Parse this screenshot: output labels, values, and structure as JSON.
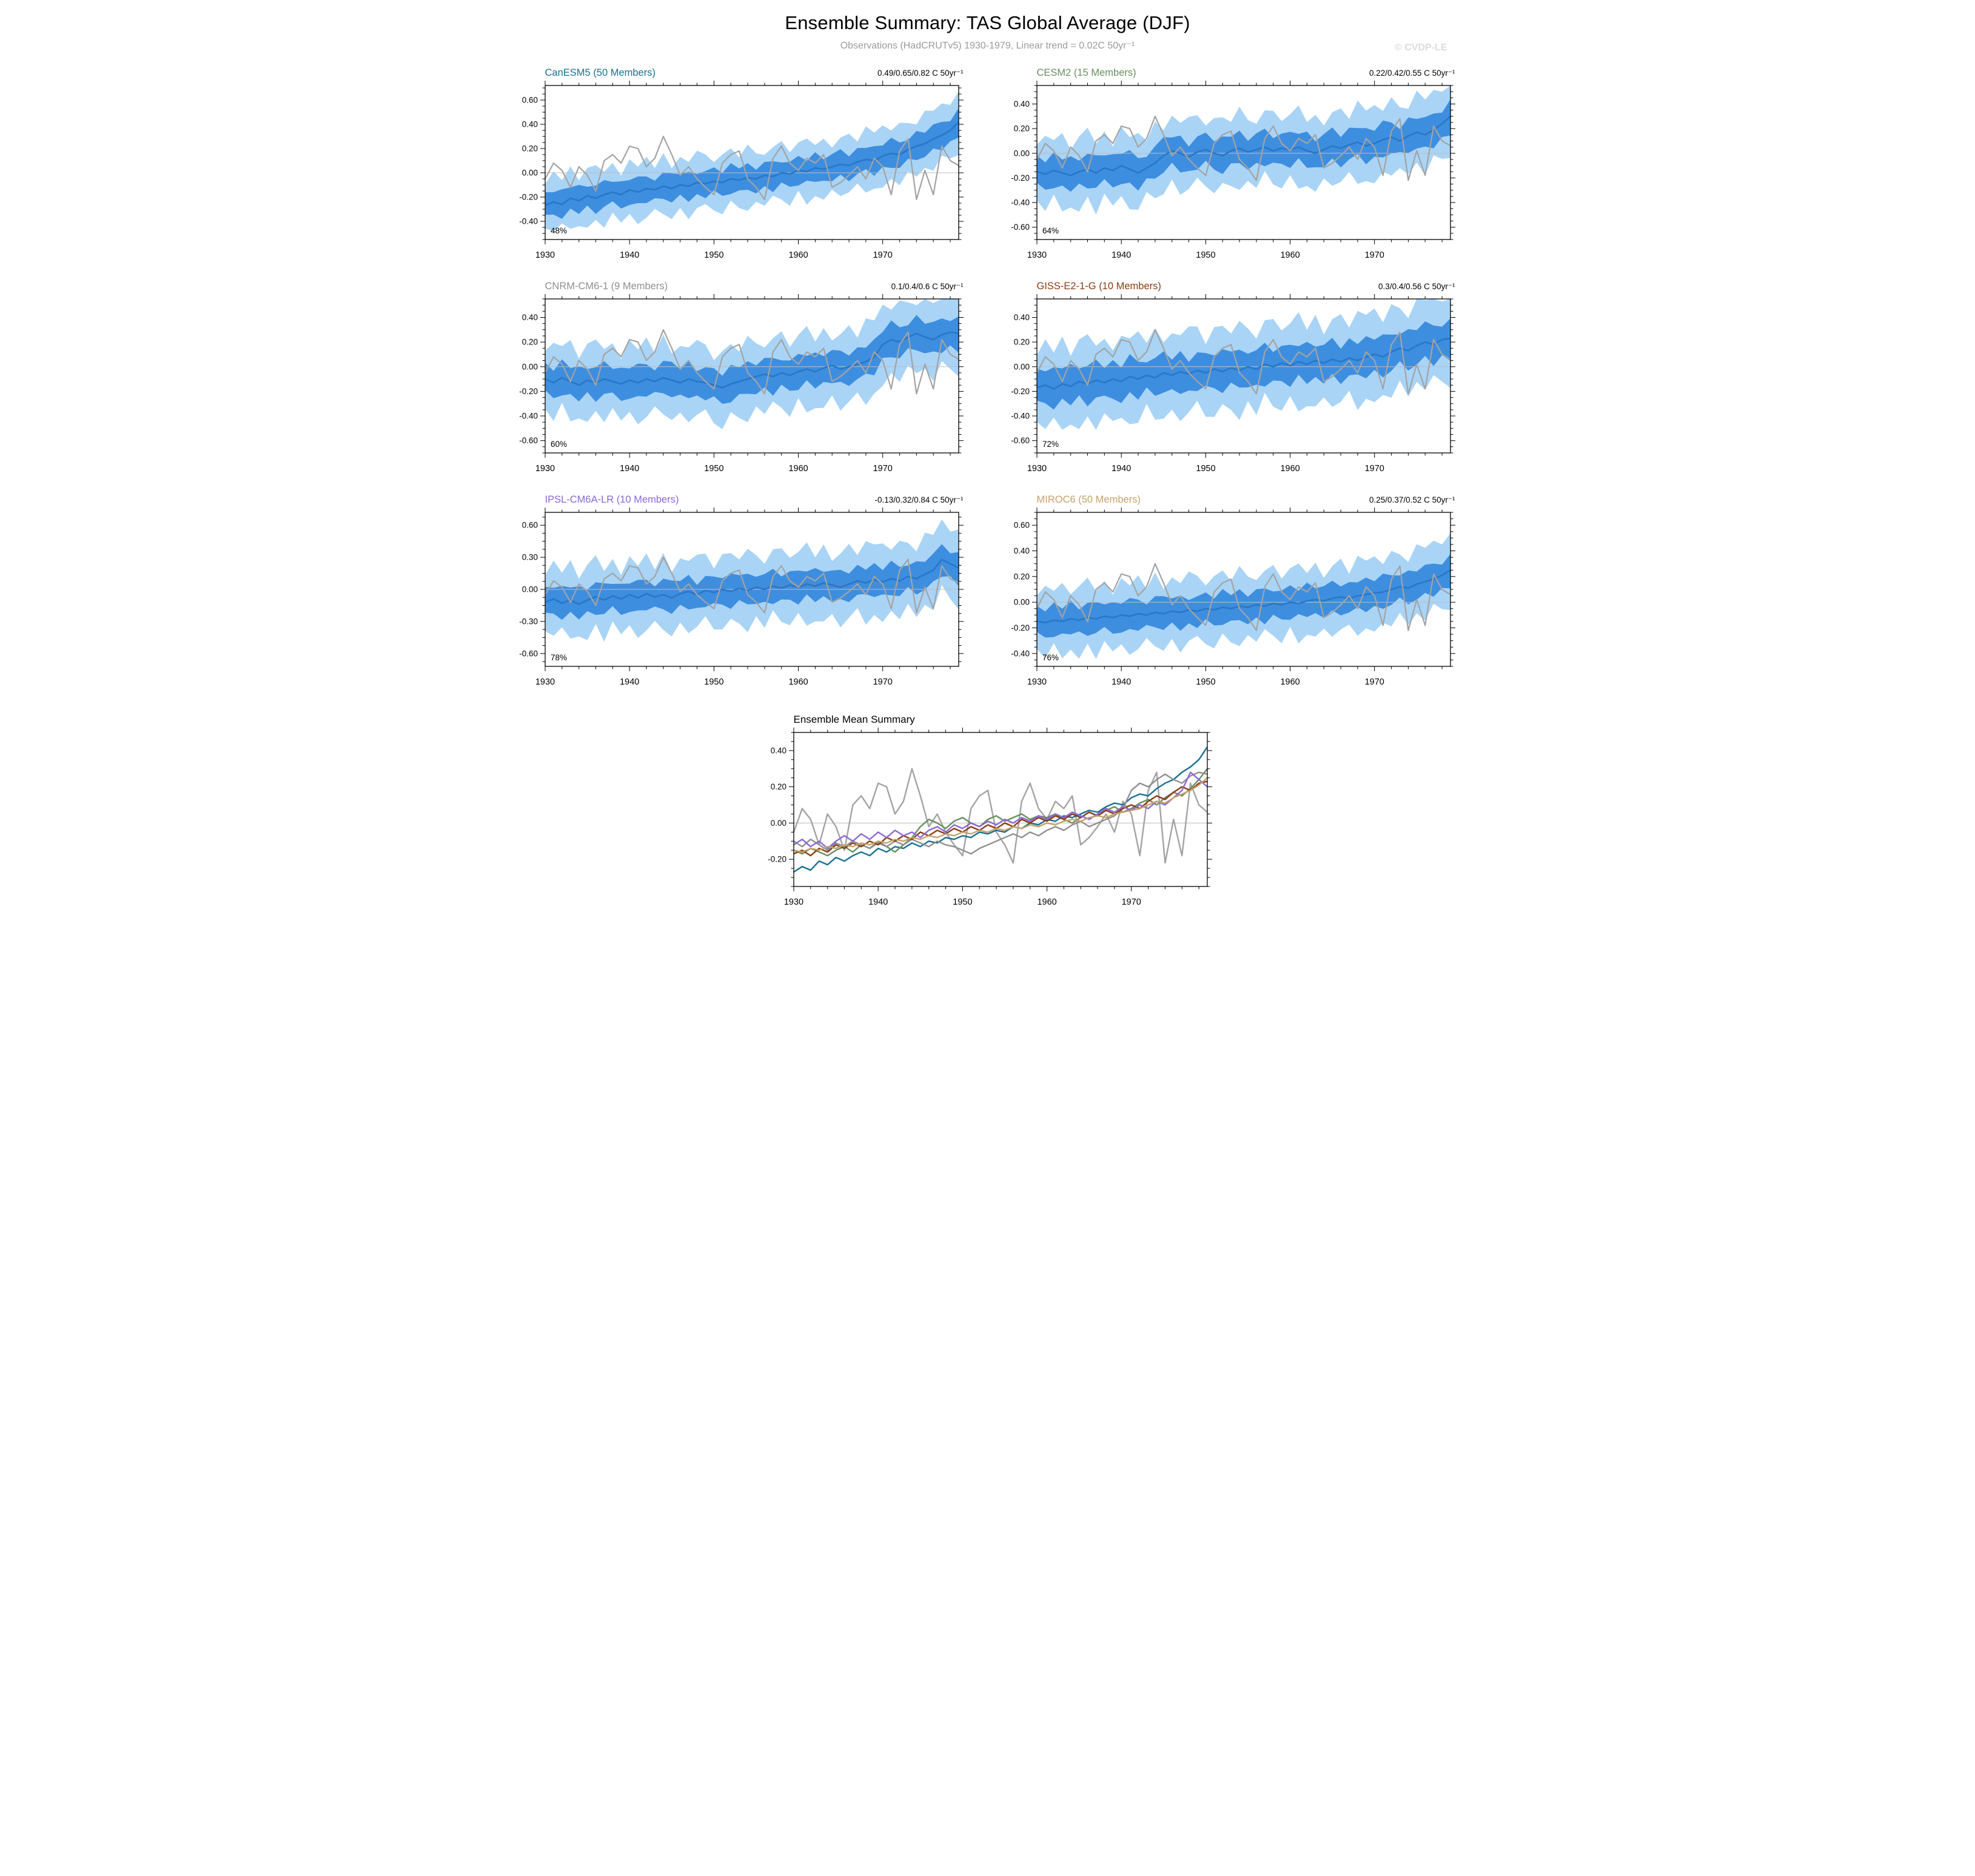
{
  "page": {
    "title": "Ensemble Summary: TAS Global Average (DJF)",
    "subtitle": "Observations (HadCRUTv5) 1930-1979, Linear trend = 0.02C 50yr⁻¹",
    "watermark": "© CVDP-LE"
  },
  "chart_data": {
    "type": "line",
    "x_start": 1930,
    "x_end": 1979,
    "x_ticks": [
      1930,
      1940,
      1950,
      1960,
      1970
    ],
    "x_minor_step": 2,
    "colors": {
      "band_outer": "#A9D4F6",
      "band_inner": "#3E8EE0",
      "ensemble_mean": "#2A78C6",
      "observations": "#A3A3A3",
      "zero_line": "#BDBDBD",
      "frame": "#000000"
    },
    "observations": [
      -0.05,
      0.08,
      0.02,
      -0.12,
      0.05,
      -0.02,
      -0.15,
      0.1,
      0.15,
      0.08,
      0.22,
      0.2,
      0.05,
      0.12,
      0.3,
      0.15,
      -0.02,
      0.05,
      -0.05,
      -0.12,
      -0.18,
      0.08,
      0.15,
      0.18,
      -0.05,
      -0.12,
      -0.22,
      0.12,
      0.22,
      0.08,
      0.02,
      0.12,
      0.08,
      0.15,
      -0.12,
      -0.08,
      -0.02,
      0.05,
      -0.05,
      0.12,
      0.05,
      -0.18,
      0.18,
      0.28,
      -0.22,
      0.02,
      -0.18,
      0.22,
      0.1,
      0.06
    ],
    "band_wiggle_inner": [
      0.1,
      -0.2,
      0.25,
      -0.1,
      0.3,
      -0.25,
      0.05,
      0.2,
      -0.15,
      0.1,
      -0.2,
      0.3,
      0.0,
      -0.25,
      0.15,
      0.25,
      -0.1,
      0.2,
      -0.3,
      0.05,
      0.15,
      -0.2,
      0.3,
      -0.05,
      0.2,
      -0.25,
      0.1,
      0.25,
      -0.15,
      0.0,
      0.2,
      -0.1,
      0.3,
      -0.2,
      0.05,
      0.25,
      -0.25,
      0.15,
      -0.05,
      0.2,
      -0.15,
      0.3,
      0.0,
      -0.2,
      0.25,
      -0.1,
      0.2,
      0.1,
      -0.25,
      0.15
    ],
    "band_wiggle_outer": [
      -0.15,
      0.2,
      -0.05,
      0.25,
      -0.2,
      0.1,
      0.3,
      -0.1,
      0.15,
      -0.25,
      0.2,
      0.0,
      0.25,
      -0.15,
      0.3,
      -0.2,
      0.1,
      -0.05,
      0.25,
      0.15,
      -0.25,
      0.1,
      0.2,
      -0.1,
      0.3,
      0.0,
      -0.2,
      0.15,
      0.25,
      -0.15,
      0.1,
      0.3,
      -0.1,
      0.2,
      -0.25,
      0.05,
      0.25,
      -0.2,
      0.3,
      0.1,
      0.2,
      -0.1,
      0.25,
      0.05,
      -0.15,
      0.3,
      0.1,
      0.25,
      0.0,
      0.2
    ],
    "panels": [
      {
        "id": "canesm5",
        "title": "CanESM5 (50 Members)",
        "color": "#176F94",
        "trend": "0.49/0.65/0.82 C 50yr⁻¹",
        "pct": "48%",
        "ylim": [
          -0.55,
          0.72
        ],
        "yticks": [
          0.6,
          0.4,
          0.2,
          0.0,
          -0.2,
          -0.4
        ],
        "inner_base": 0.1,
        "outer_base": 0.21,
        "mean": [
          -0.27,
          -0.24,
          -0.26,
          -0.21,
          -0.23,
          -0.19,
          -0.21,
          -0.18,
          -0.16,
          -0.18,
          -0.14,
          -0.16,
          -0.13,
          -0.14,
          -0.11,
          -0.13,
          -0.1,
          -0.11,
          -0.08,
          -0.09,
          -0.07,
          -0.08,
          -0.05,
          -0.06,
          -0.04,
          -0.05,
          -0.02,
          -0.03,
          0.0,
          -0.01,
          0.02,
          0.01,
          0.04,
          0.03,
          0.05,
          0.07,
          0.06,
          0.09,
          0.11,
          0.1,
          0.14,
          0.16,
          0.15,
          0.19,
          0.22,
          0.24,
          0.28,
          0.31,
          0.35,
          0.42
        ]
      },
      {
        "id": "cesm2",
        "title": "CESM2 (15 Members)",
        "color": "#688F5E",
        "trend": "0.22/0.42/0.55 C 50yr⁻¹",
        "pct": "64%",
        "ylim": [
          -0.7,
          0.55
        ],
        "yticks": [
          0.4,
          0.2,
          0.0,
          -0.2,
          -0.4,
          -0.6
        ],
        "inner_base": 0.12,
        "outer_base": 0.26,
        "mean": [
          -0.15,
          -0.17,
          -0.14,
          -0.16,
          -0.18,
          -0.15,
          -0.13,
          -0.16,
          -0.12,
          -0.14,
          -0.1,
          -0.13,
          -0.16,
          -0.12,
          -0.08,
          -0.02,
          0.02,
          0.0,
          -0.03,
          0.01,
          0.03,
          0.0,
          -0.02,
          0.02,
          0.04,
          0.01,
          0.03,
          0.05,
          0.02,
          0.04,
          0.03,
          0.05,
          0.02,
          0.0,
          0.03,
          0.06,
          0.04,
          0.07,
          0.09,
          0.06,
          0.08,
          0.11,
          0.13,
          0.1,
          0.14,
          0.17,
          0.15,
          0.19,
          0.24,
          0.3
        ]
      },
      {
        "id": "cnrm-cm6-1",
        "title": "CNRM-CM6-1 (9 Members)",
        "color": "#8F8F8F",
        "trend": "0.1/0.4/0.6 C 50yr⁻¹",
        "pct": "60%",
        "ylim": [
          -0.7,
          0.55
        ],
        "yticks": [
          0.4,
          0.2,
          0.0,
          -0.2,
          -0.4,
          -0.6
        ],
        "inner_base": 0.12,
        "outer_base": 0.27,
        "mean": [
          -0.1,
          -0.13,
          -0.09,
          -0.12,
          -0.15,
          -0.11,
          -0.13,
          -0.1,
          -0.12,
          -0.14,
          -0.11,
          -0.13,
          -0.1,
          -0.12,
          -0.09,
          -0.11,
          -0.13,
          -0.1,
          -0.12,
          -0.13,
          -0.15,
          -0.17,
          -0.14,
          -0.12,
          -0.1,
          -0.08,
          -0.06,
          -0.08,
          -0.05,
          -0.07,
          -0.04,
          -0.02,
          -0.04,
          -0.01,
          0.01,
          -0.02,
          0.0,
          0.02,
          0.04,
          0.08,
          0.18,
          0.22,
          0.2,
          0.24,
          0.27,
          0.24,
          0.22,
          0.26,
          0.28,
          0.27
        ]
      },
      {
        "id": "giss-e2-1-g",
        "title": "GISS-E2-1-G (10 Members)",
        "color": "#8C3B12",
        "trend": "0.3/0.4/0.56 C 50yr⁻¹",
        "pct": "72%",
        "ylim": [
          -0.7,
          0.55
        ],
        "yticks": [
          0.4,
          0.2,
          0.0,
          -0.2,
          -0.4,
          -0.6
        ],
        "inner_base": 0.14,
        "outer_base": 0.31,
        "mean": [
          -0.17,
          -0.15,
          -0.18,
          -0.14,
          -0.16,
          -0.12,
          -0.14,
          -0.11,
          -0.13,
          -0.1,
          -0.12,
          -0.08,
          -0.1,
          -0.07,
          -0.09,
          -0.05,
          -0.07,
          -0.04,
          -0.06,
          -0.03,
          -0.05,
          -0.02,
          -0.04,
          -0.01,
          -0.03,
          0.0,
          -0.02,
          0.02,
          0.0,
          0.03,
          0.01,
          0.04,
          0.02,
          0.05,
          0.03,
          0.06,
          0.04,
          0.07,
          0.05,
          0.08,
          0.1,
          0.08,
          0.12,
          0.15,
          0.13,
          0.17,
          0.2,
          0.18,
          0.22,
          0.23
        ]
      },
      {
        "id": "ipsl-cm6a-lr",
        "title": "IPSL-CM6A-LR (10 Members)",
        "color": "#8A68D6",
        "trend": "-0.13/0.32/0.84 C 50yr⁻¹",
        "pct": "78%",
        "ylim": [
          -0.72,
          0.72
        ],
        "yticks": [
          0.6,
          0.3,
          0.0,
          -0.3,
          -0.6
        ],
        "inner_base": 0.13,
        "outer_base": 0.3,
        "mean": [
          -0.12,
          -0.09,
          -0.13,
          -0.1,
          -0.14,
          -0.1,
          -0.07,
          -0.1,
          -0.06,
          -0.09,
          -0.05,
          -0.08,
          -0.04,
          -0.07,
          -0.05,
          -0.08,
          -0.04,
          -0.02,
          -0.05,
          -0.01,
          -0.03,
          0.0,
          -0.02,
          0.01,
          -0.01,
          0.02,
          0.0,
          0.03,
          0.01,
          0.04,
          0.02,
          0.05,
          0.03,
          0.06,
          0.04,
          0.02,
          0.05,
          0.08,
          0.06,
          0.09,
          0.07,
          0.1,
          0.08,
          0.12,
          0.1,
          0.14,
          0.18,
          0.28,
          0.24,
          0.2
        ]
      },
      {
        "id": "miroc6",
        "title": "MIROC6 (50 Members)",
        "color": "#C7A26B",
        "trend": "0.25/0.37/0.52 C 50yr⁻¹",
        "pct": "76%",
        "ylim": [
          -0.5,
          0.7
        ],
        "yticks": [
          0.6,
          0.4,
          0.2,
          0.0,
          -0.2,
          -0.4
        ],
        "inner_base": 0.11,
        "outer_base": 0.24,
        "mean": [
          -0.15,
          -0.16,
          -0.14,
          -0.15,
          -0.13,
          -0.14,
          -0.12,
          -0.13,
          -0.11,
          -0.12,
          -0.1,
          -0.11,
          -0.09,
          -0.1,
          -0.08,
          -0.09,
          -0.07,
          -0.08,
          -0.06,
          -0.07,
          -0.05,
          -0.06,
          -0.04,
          -0.05,
          -0.03,
          -0.04,
          -0.02,
          -0.03,
          -0.01,
          -0.02,
          0.0,
          -0.01,
          0.01,
          0.02,
          0.01,
          0.03,
          0.04,
          0.03,
          0.05,
          0.06,
          0.07,
          0.08,
          0.1,
          0.12,
          0.11,
          0.14,
          0.16,
          0.18,
          0.21,
          0.25
        ]
      }
    ],
    "summary": {
      "title": "Ensemble Mean Summary",
      "ylim": [
        -0.35,
        0.5
      ],
      "yticks": [
        0.4,
        0.2,
        0.0,
        -0.2
      ],
      "legend": "lines are per-model ensemble means plus gray observations"
    }
  }
}
